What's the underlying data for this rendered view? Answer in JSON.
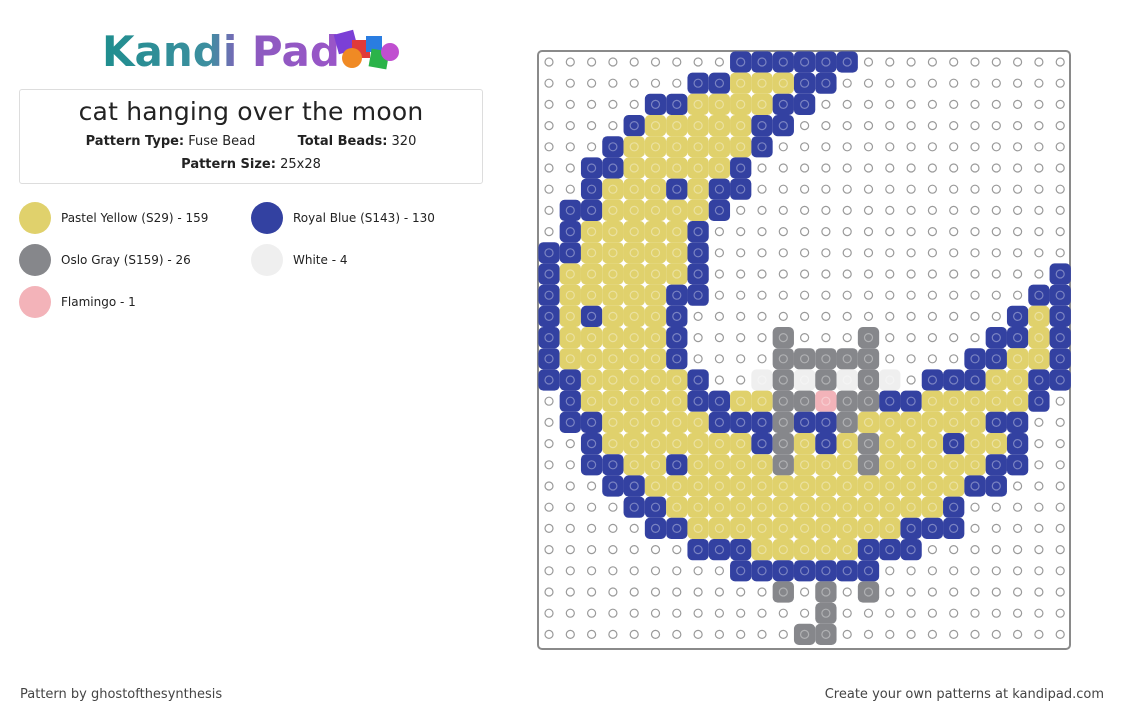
{
  "header": {
    "logo": "Kandi Pad"
  },
  "pattern": {
    "title": "cat hanging over the moon",
    "type_label": "Pattern Type:",
    "type_value": "Fuse Bead",
    "beads_label": "Total Beads:",
    "beads_value": "320",
    "size_label": "Pattern Size:",
    "size_value": "25x28"
  },
  "legend": [
    {
      "name": "Pastel Yellow (S29) - 159",
      "color": "#e0d16c"
    },
    {
      "name": "Royal Blue (S143) - 130",
      "color": "#3341a1"
    },
    {
      "name": "Oslo Gray (S159) - 26",
      "color": "#86878b"
    },
    {
      "name": "White - 4",
      "color": "#efefef"
    },
    {
      "name": "Flamingo - 1",
      "color": "#f3b3b9"
    }
  ],
  "footer": {
    "credit": "Pattern by ghostofthesynthesis",
    "promo": "Create your own patterns at kandipad.com"
  }
}
